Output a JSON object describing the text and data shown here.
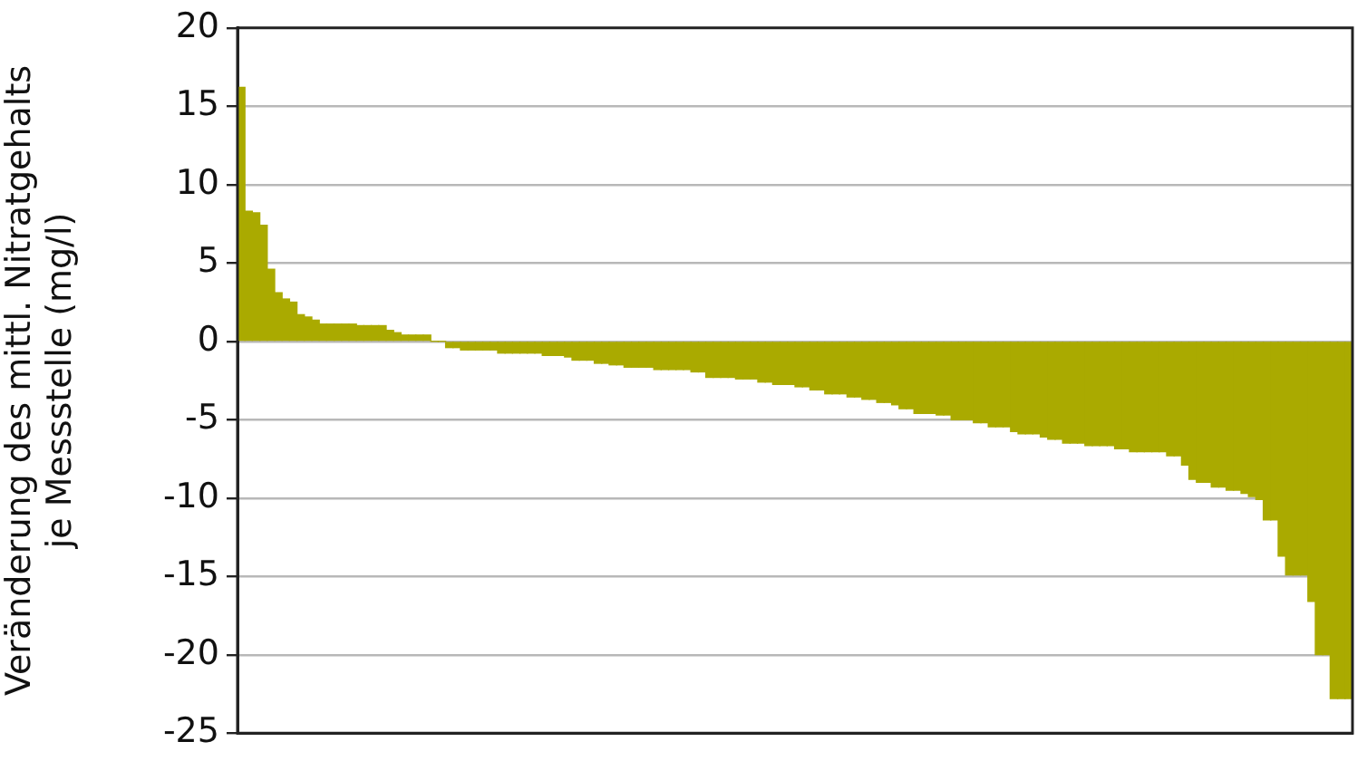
{
  "chart_data": {
    "type": "bar",
    "ylabel": "Veränderung des mittl. Nitratgehalts\nje Messstelle (mg/l)",
    "categories": [
      null,
      null,
      null,
      null,
      null,
      null,
      null,
      null,
      null,
      null,
      null,
      null,
      null,
      null,
      null,
      null,
      null,
      null,
      null,
      null,
      null,
      null,
      null,
      null,
      null,
      null,
      null,
      null,
      null,
      null,
      null,
      null,
      null,
      null,
      null,
      null,
      null,
      null,
      null,
      null,
      null,
      null,
      null,
      null,
      null,
      null,
      null,
      null,
      null,
      null,
      null,
      null,
      null,
      null,
      null,
      null,
      null,
      null,
      null,
      null,
      null,
      null,
      null,
      null,
      null,
      null,
      null,
      null,
      null,
      null,
      null,
      null,
      null,
      null,
      null,
      null,
      null,
      null,
      null,
      null,
      null,
      null,
      null,
      null,
      null,
      null,
      null,
      null,
      null,
      null,
      null,
      null,
      null,
      null,
      null,
      null,
      null,
      null,
      null,
      null,
      null,
      null,
      null,
      null,
      null,
      null,
      null,
      null,
      null,
      null,
      null,
      null,
      null,
      null,
      null,
      null,
      null,
      null,
      null,
      null,
      null,
      null,
      null,
      null,
      null,
      null,
      null,
      null,
      null,
      null,
      null,
      null,
      null,
      null,
      null,
      null,
      null,
      null,
      null,
      null,
      null,
      null,
      null,
      null,
      null,
      null,
      null,
      null,
      null,
      null
    ],
    "values": [
      16.2,
      8.3,
      8.2,
      7.4,
      4.6,
      3.1,
      2.7,
      2.5,
      1.7,
      1.55,
      1.35,
      1.1,
      1.1,
      1.1,
      1.1,
      1.1,
      1.0,
      1.0,
      1.0,
      1.0,
      0.7,
      0.55,
      0.4,
      0.4,
      0.4,
      0.4,
      0,
      0,
      -0.4,
      -0.4,
      -0.55,
      -0.55,
      -0.55,
      -0.55,
      -0.55,
      -0.75,
      -0.75,
      -0.75,
      -0.75,
      -0.75,
      -0.75,
      -0.9,
      -0.9,
      -0.9,
      -1.0,
      -1.2,
      -1.2,
      -1.2,
      -1.4,
      -1.4,
      -1.5,
      -1.5,
      -1.65,
      -1.65,
      -1.65,
      -1.65,
      -1.8,
      -1.8,
      -1.8,
      -1.8,
      -1.8,
      -1.95,
      -1.95,
      -2.3,
      -2.3,
      -2.3,
      -2.3,
      -2.4,
      -2.4,
      -2.4,
      -2.6,
      -2.6,
      -2.75,
      -2.75,
      -2.75,
      -2.9,
      -2.9,
      -3.1,
      -3.1,
      -3.35,
      -3.35,
      -3.35,
      -3.55,
      -3.55,
      -3.7,
      -3.7,
      -3.9,
      -3.9,
      -4.05,
      -4.3,
      -4.3,
      -4.6,
      -4.6,
      -4.6,
      -4.7,
      -4.7,
      -5.0,
      -5.0,
      -5.0,
      -5.2,
      -5.2,
      -5.45,
      -5.45,
      -5.45,
      -5.75,
      -5.9,
      -5.9,
      -5.9,
      -6.1,
      -6.25,
      -6.25,
      -6.5,
      -6.5,
      -6.5,
      -6.65,
      -6.65,
      -6.65,
      -6.65,
      -6.85,
      -6.85,
      -7.05,
      -7.05,
      -7.05,
      -7.05,
      -7.05,
      -7.3,
      -7.3,
      -7.9,
      -8.8,
      -9.0,
      -9.0,
      -9.3,
      -9.3,
      -9.5,
      -9.5,
      -9.7,
      -9.9,
      -10.1,
      -11.4,
      -11.4,
      -13.7,
      -14.9,
      -14.9,
      -14.9,
      -16.6,
      -20.0,
      -20.0,
      -22.8,
      -22.8,
      -22.8
    ],
    "color": "#aaaa00",
    "ylim": [
      -25,
      20
    ],
    "yticks": [
      -25,
      -20,
      -15,
      -10,
      -5,
      0,
      5,
      10,
      15,
      20
    ],
    "grid": "y",
    "tick_labels": "y"
  }
}
